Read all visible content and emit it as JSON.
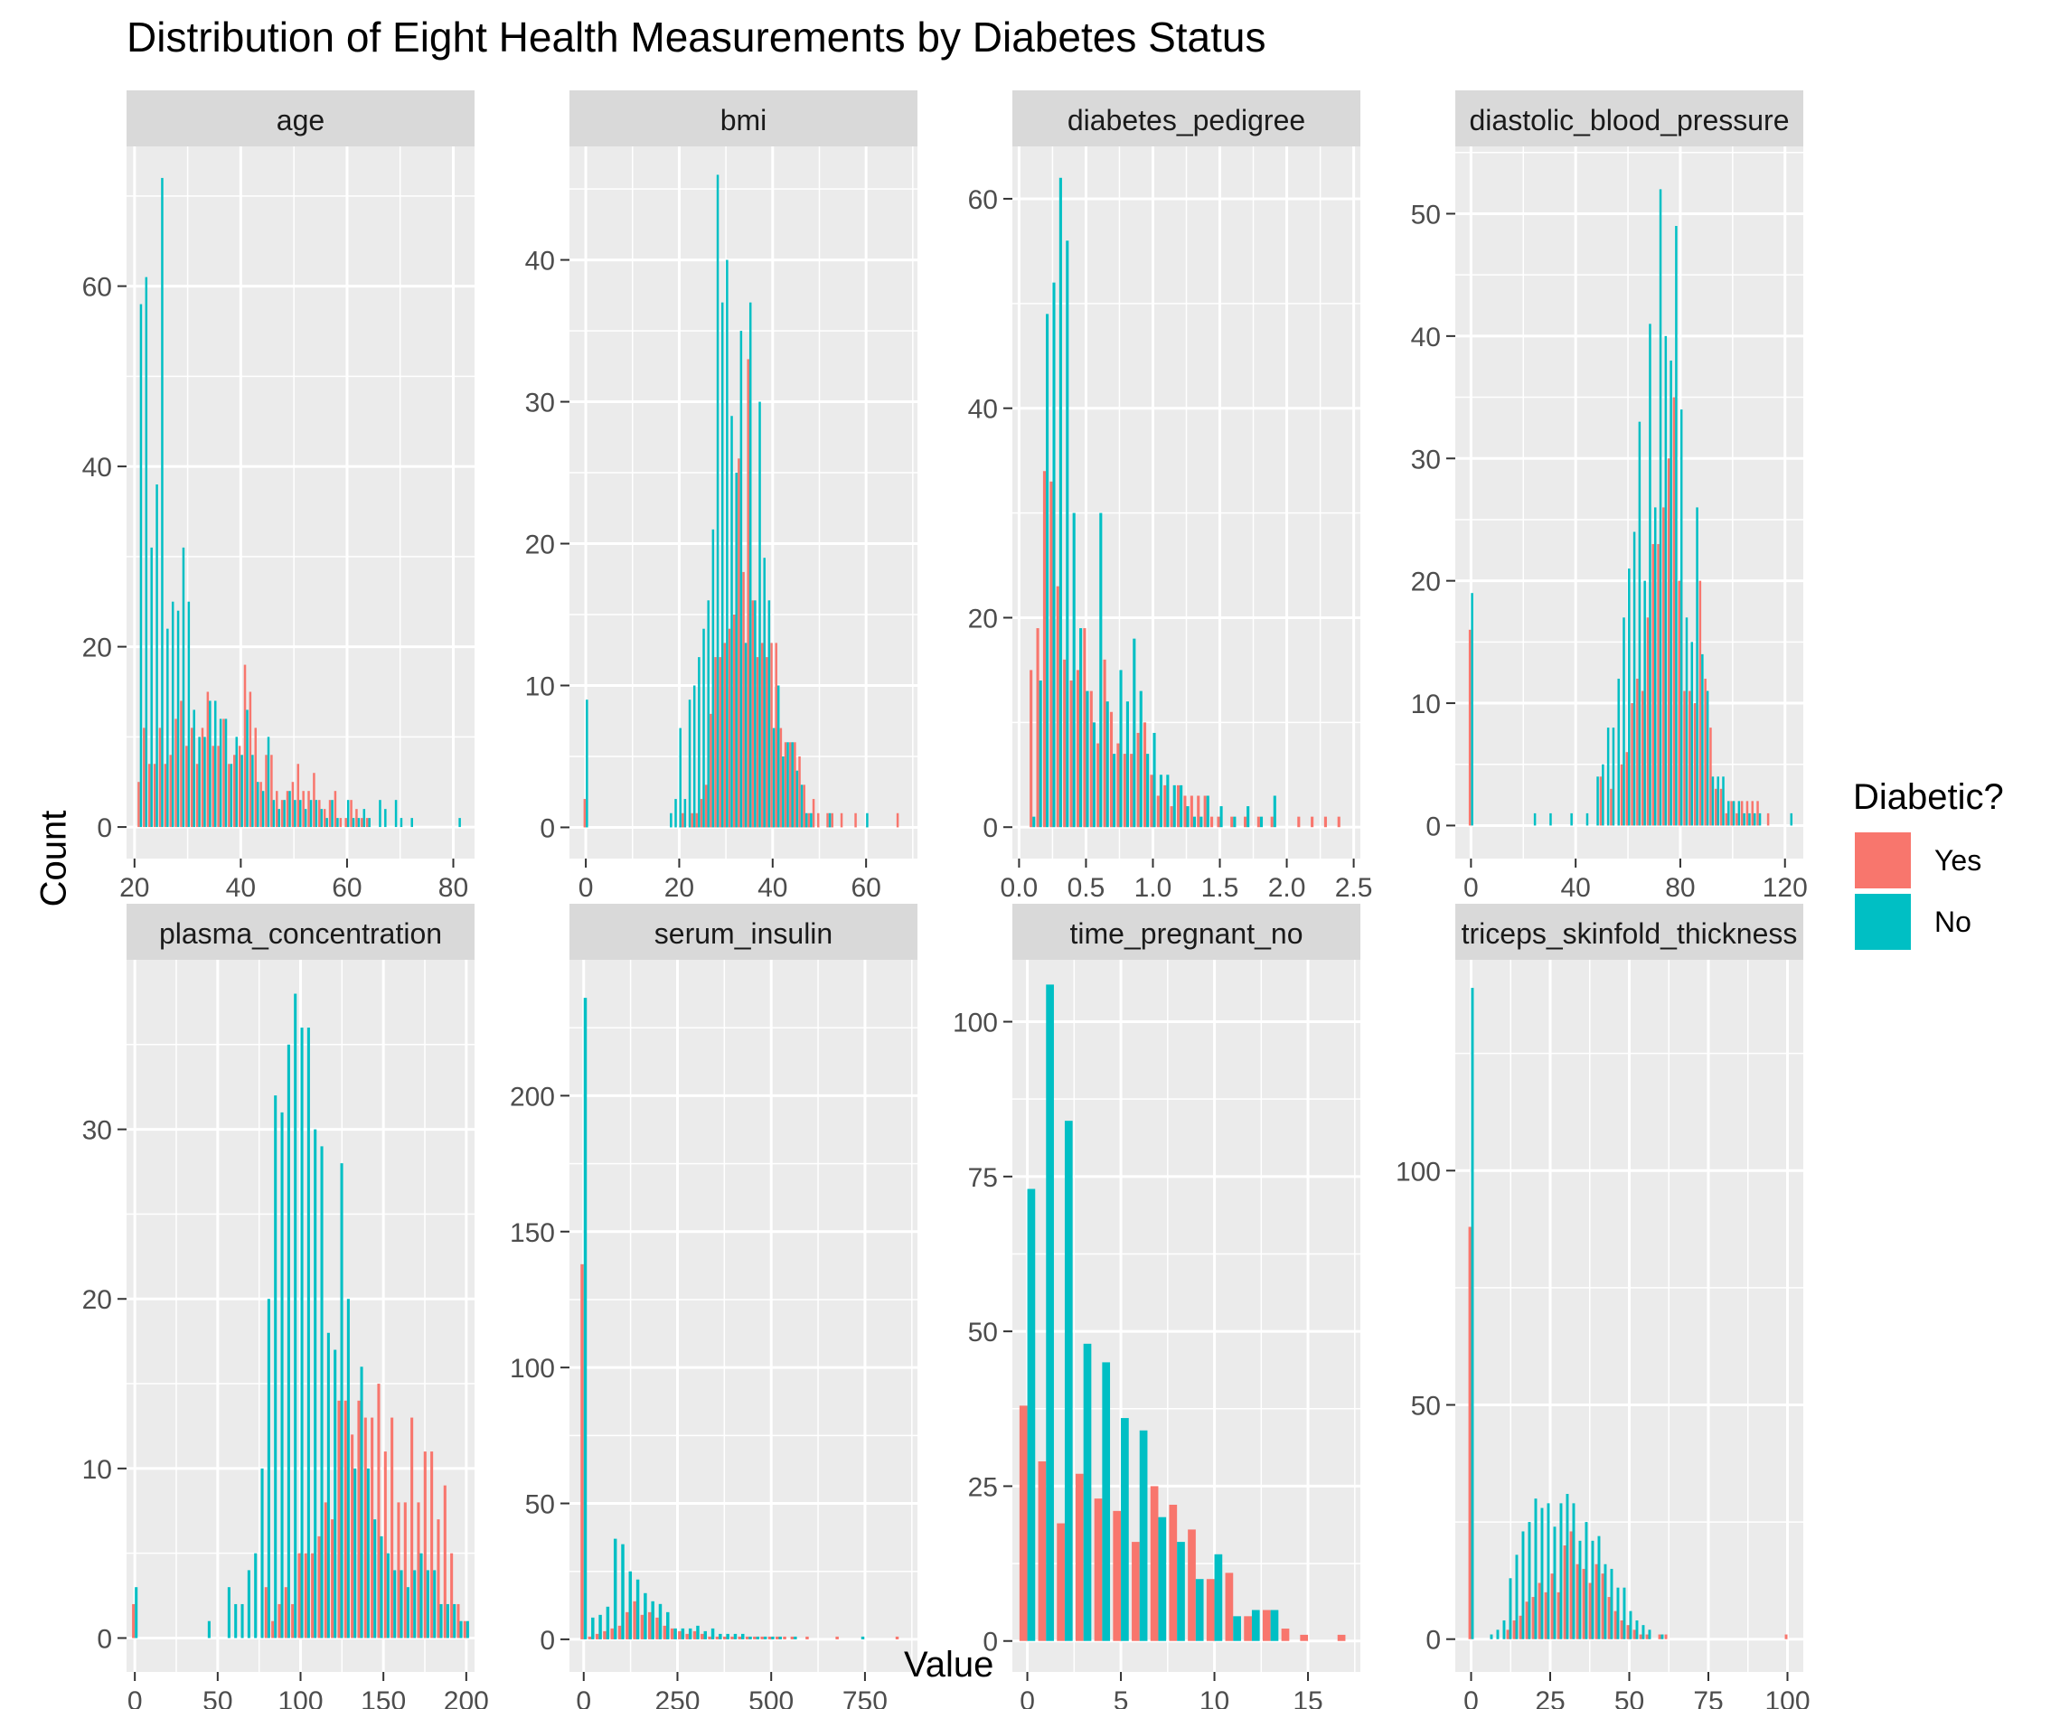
{
  "title": "Distribution of Eight Health Measurements by Diabetes Status",
  "xlabel": "Value",
  "ylabel": "Count",
  "legend": {
    "title": "Diabetic?",
    "items": [
      {
        "label": "Yes",
        "color": "#F8766D"
      },
      {
        "label": "No",
        "color": "#00BFC4"
      }
    ]
  },
  "chart_data": [
    {
      "type": "bar",
      "facet": "age",
      "xlim": [
        18.5,
        84
      ],
      "ylim": [
        -3.5,
        75.5
      ],
      "xticks": [
        20,
        40,
        60,
        80
      ],
      "xtick_labels": [
        "20",
        "40",
        "60",
        "80"
      ],
      "yticks": [
        0,
        20,
        40,
        60
      ],
      "ytick_labels": [
        "0",
        "20",
        "40",
        "60"
      ],
      "x": [
        21,
        22,
        23,
        24,
        25,
        26,
        27,
        28,
        29,
        30,
        31,
        32,
        33,
        34,
        35,
        36,
        37,
        38,
        39,
        40,
        41,
        42,
        43,
        44,
        45,
        46,
        47,
        48,
        49,
        50,
        51,
        52,
        53,
        54,
        55,
        56,
        57,
        58,
        59,
        60,
        61,
        62,
        63,
        64,
        65,
        66,
        67,
        68,
        69,
        70,
        72,
        81
      ],
      "series": [
        {
          "name": "Yes",
          "values": [
            5,
            11,
            7,
            7,
            11,
            7,
            8,
            12,
            14,
            9,
            11,
            7,
            11,
            15,
            9,
            9,
            12,
            7,
            8,
            9,
            18,
            15,
            11,
            5,
            8,
            8,
            4,
            3,
            4,
            5,
            7,
            4,
            4,
            6,
            3,
            2,
            3,
            4,
            1,
            1,
            3,
            2,
            1,
            1,
            0,
            0,
            0,
            0,
            0,
            0,
            0,
            0
          ]
        },
        {
          "name": "No",
          "values": [
            58,
            61,
            31,
            38,
            72,
            22,
            25,
            24,
            31,
            25,
            13,
            10,
            10,
            14,
            14,
            12,
            12,
            7,
            10,
            8,
            13,
            8,
            5,
            4,
            10,
            3,
            2,
            3,
            4,
            3,
            3,
            2,
            3,
            3,
            2,
            1,
            3,
            1,
            0,
            3,
            1,
            1,
            2,
            1,
            0,
            3,
            2,
            0,
            3,
            1,
            1,
            1
          ]
        }
      ]
    },
    {
      "type": "bar",
      "facet": "bmi",
      "xlim": [
        -3.5,
        71
      ],
      "ylim": [
        -2.2,
        48
      ],
      "xticks": [
        0,
        20,
        40,
        60
      ],
      "xtick_labels": [
        "0",
        "20",
        "40",
        "60"
      ],
      "yticks": [
        0,
        10,
        20,
        30,
        40
      ],
      "ytick_labels": [
        "0",
        "10",
        "20",
        "30",
        "40"
      ],
      "x": [
        0,
        18,
        19,
        20,
        21,
        22,
        23,
        24,
        25,
        26,
        27,
        28,
        29,
        30,
        31,
        32,
        33,
        34,
        35,
        36,
        37,
        38,
        39,
        40,
        41,
        42,
        43,
        44,
        45,
        46,
        47,
        48,
        49,
        50,
        52,
        53,
        55,
        58,
        60,
        67
      ],
      "series": [
        {
          "name": "Yes",
          "values": [
            2,
            0,
            0,
            0,
            1,
            0,
            1,
            1,
            2,
            3,
            8,
            12,
            12,
            13,
            14,
            15,
            26,
            18,
            33,
            16,
            12,
            13,
            12,
            13,
            13,
            7,
            6,
            6,
            6,
            5,
            3,
            1,
            2,
            1,
            1,
            1,
            1,
            1,
            0,
            1
          ]
        },
        {
          "name": "No",
          "values": [
            9,
            1,
            2,
            7,
            2,
            9,
            10,
            12,
            14,
            16,
            21,
            46,
            37,
            40,
            29,
            25,
            35,
            13,
            37,
            16,
            30,
            19,
            16,
            7,
            10,
            5,
            6,
            6,
            4,
            3,
            1,
            1,
            0,
            0,
            1,
            0,
            0,
            0,
            1,
            0
          ]
        }
      ]
    },
    {
      "type": "bar",
      "facet": "diabetes_pedigree",
      "xlim": [
        -0.05,
        2.55
      ],
      "ylim": [
        -3,
        65
      ],
      "xticks": [
        0,
        0.5,
        1,
        1.5,
        2,
        2.5
      ],
      "xtick_labels": [
        "0.0",
        "0.5",
        "1.0",
        "1.5",
        "2.0",
        "2.5"
      ],
      "yticks": [
        0,
        20,
        40,
        60
      ],
      "ytick_labels": [
        "0",
        "20",
        "40",
        "60"
      ],
      "x": [
        0.1,
        0.15,
        0.2,
        0.25,
        0.3,
        0.35,
        0.4,
        0.45,
        0.5,
        0.55,
        0.6,
        0.65,
        0.7,
        0.75,
        0.8,
        0.85,
        0.9,
        0.95,
        1.0,
        1.05,
        1.1,
        1.15,
        1.2,
        1.25,
        1.3,
        1.35,
        1.4,
        1.45,
        1.5,
        1.6,
        1.7,
        1.8,
        1.9,
        2.1,
        2.2,
        2.3,
        2.4
      ],
      "series": [
        {
          "name": "Yes",
          "values": [
            15,
            19,
            34,
            33,
            23,
            16,
            14,
            15,
            19,
            13,
            8,
            16,
            11,
            8,
            7,
            7,
            9,
            10,
            5,
            3,
            4,
            2,
            4,
            3,
            3,
            3,
            3,
            1,
            1,
            1,
            1,
            1,
            1,
            1,
            1,
            1,
            1
          ]
        },
        {
          "name": "No",
          "values": [
            1,
            14,
            49,
            52,
            62,
            56,
            30,
            19,
            13,
            10,
            30,
            12,
            7,
            15,
            12,
            18,
            13,
            7,
            9,
            5,
            5,
            4,
            4,
            2,
            1,
            1,
            3,
            0,
            2,
            1,
            2,
            1,
            3,
            0,
            0,
            0,
            0
          ]
        }
      ]
    },
    {
      "type": "bar",
      "facet": "diastolic_blood_pressure",
      "xlim": [
        -6,
        127
      ],
      "ylim": [
        -2.7,
        55.5
      ],
      "xticks": [
        0,
        40,
        80,
        120
      ],
      "xtick_labels": [
        "0",
        "40",
        "80",
        "120"
      ],
      "yticks": [
        0,
        10,
        20,
        30,
        40,
        50
      ],
      "ytick_labels": [
        "0",
        "10",
        "20",
        "30",
        "40",
        "50"
      ],
      "x": [
        0,
        24,
        30,
        38,
        44,
        48,
        50,
        52,
        54,
        56,
        58,
        60,
        62,
        64,
        66,
        68,
        70,
        72,
        74,
        76,
        78,
        80,
        82,
        84,
        86,
        88,
        90,
        92,
        94,
        96,
        98,
        100,
        102,
        104,
        106,
        108,
        110,
        114,
        122
      ],
      "series": [
        {
          "name": "Yes",
          "values": [
            16,
            0,
            0,
            0,
            0,
            0,
            4,
            0,
            3,
            0,
            5,
            6,
            10,
            12,
            11,
            17,
            23,
            23,
            26,
            30,
            35,
            20,
            11,
            11,
            10,
            20,
            12,
            8,
            3,
            3,
            1,
            2,
            1,
            2,
            2,
            2,
            2,
            1,
            0
          ]
        },
        {
          "name": "No",
          "values": [
            19,
            1,
            1,
            1,
            1,
            4,
            5,
            8,
            8,
            12,
            17,
            21,
            24,
            33,
            20,
            41,
            26,
            52,
            40,
            38,
            49,
            34,
            17,
            15,
            26,
            14,
            11,
            4,
            4,
            4,
            2,
            2,
            2,
            1,
            1,
            1,
            1,
            0,
            1
          ]
        }
      ]
    },
    {
      "type": "bar",
      "facet": "plasma_concentration",
      "xlim": [
        -5,
        205
      ],
      "ylim": [
        -2,
        40
      ],
      "xticks": [
        0,
        50,
        100,
        150,
        200
      ],
      "xtick_labels": [
        "0",
        "50",
        "100",
        "150",
        "200"
      ],
      "yticks": [
        0,
        10,
        20,
        30
      ],
      "ytick_labels": [
        "0",
        "10",
        "20",
        "30"
      ],
      "x": [
        0,
        44,
        56,
        60,
        64,
        68,
        72,
        76,
        80,
        84,
        88,
        92,
        96,
        100,
        104,
        108,
        112,
        116,
        120,
        124,
        128,
        132,
        136,
        140,
        144,
        148,
        152,
        156,
        160,
        164,
        168,
        172,
        176,
        180,
        184,
        188,
        192,
        196,
        200
      ],
      "series": [
        {
          "name": "Yes",
          "values": [
            2,
            0,
            0,
            0,
            0,
            0,
            0,
            0,
            3,
            1,
            2,
            3,
            2,
            5,
            5,
            5,
            6,
            8,
            7,
            14,
            14,
            12,
            14,
            13,
            13,
            15,
            11,
            13,
            8,
            8,
            13,
            8,
            11,
            11,
            7,
            9,
            5,
            2,
            1
          ]
        },
        {
          "name": "No",
          "values": [
            3,
            1,
            3,
            2,
            2,
            4,
            5,
            10,
            20,
            32,
            31,
            35,
            38,
            36,
            36,
            30,
            29,
            18,
            17,
            28,
            20,
            10,
            16,
            10,
            7,
            6,
            5,
            4,
            4,
            3,
            4,
            5,
            4,
            4,
            2,
            2,
            2,
            1,
            1
          ]
        }
      ]
    },
    {
      "type": "bar",
      "facet": "serum_insulin",
      "xlim": [
        -38,
        890
      ],
      "ylim": [
        -12,
        250
      ],
      "xticks": [
        0,
        250,
        500,
        750
      ],
      "xtick_labels": [
        "0",
        "250",
        "500",
        "750"
      ],
      "yticks": [
        0,
        50,
        100,
        150,
        200
      ],
      "ytick_labels": [
        "0",
        "50",
        "100",
        "150",
        "200"
      ],
      "x": [
        0,
        20,
        40,
        60,
        80,
        100,
        120,
        140,
        160,
        180,
        200,
        220,
        240,
        260,
        280,
        300,
        320,
        340,
        360,
        380,
        400,
        420,
        440,
        460,
        480,
        500,
        520,
        540,
        560,
        600,
        680,
        740,
        840
      ],
      "series": [
        {
          "name": "Yes",
          "values": [
            138,
            1,
            2,
            3,
            4,
            5,
            10,
            14,
            9,
            10,
            8,
            5,
            4,
            3,
            2,
            3,
            2,
            1,
            1,
            1,
            1,
            1,
            1,
            1,
            1,
            1,
            1,
            1,
            1,
            1,
            1,
            0,
            1
          ]
        },
        {
          "name": "No",
          "values": [
            236,
            8,
            9,
            12,
            37,
            35,
            25,
            22,
            17,
            14,
            13,
            10,
            4,
            4,
            4,
            5,
            3,
            4,
            2,
            2,
            2,
            2,
            1,
            1,
            1,
            1,
            1,
            0,
            1,
            0,
            0,
            1,
            0
          ]
        }
      ]
    },
    {
      "type": "bar",
      "facet": "time_pregnant_no",
      "xlim": [
        -0.8,
        17.8
      ],
      "ylim": [
        -5,
        110
      ],
      "xticks": [
        0,
        5,
        10,
        15
      ],
      "xtick_labels": [
        "0",
        "5",
        "10",
        "15"
      ],
      "yticks": [
        0,
        25,
        50,
        75,
        100
      ],
      "ytick_labels": [
        "0",
        "25",
        "50",
        "75",
        "100"
      ],
      "x": [
        0,
        1,
        2,
        3,
        4,
        5,
        6,
        7,
        8,
        9,
        10,
        11,
        12,
        13,
        14,
        15,
        17
      ],
      "series": [
        {
          "name": "Yes",
          "values": [
            38,
            29,
            19,
            27,
            23,
            21,
            16,
            25,
            22,
            18,
            10,
            11,
            4,
            5,
            2,
            1,
            1
          ]
        },
        {
          "name": "No",
          "values": [
            73,
            106,
            84,
            48,
            45,
            36,
            34,
            20,
            16,
            10,
            14,
            4,
            5,
            5,
            0,
            0,
            0
          ]
        }
      ]
    },
    {
      "type": "bar",
      "facet": "triceps_skinfold_thickness",
      "xlim": [
        -5,
        105
      ],
      "ylim": [
        -7,
        145
      ],
      "xticks": [
        0,
        25,
        50,
        75,
        100
      ],
      "xtick_labels": [
        "0",
        "25",
        "50",
        "75",
        "100"
      ],
      "yticks": [
        0,
        50,
        100
      ],
      "ytick_labels": [
        "0",
        "50",
        "100"
      ],
      "x": [
        0,
        6,
        8,
        10,
        12,
        14,
        16,
        18,
        20,
        22,
        24,
        26,
        28,
        30,
        32,
        34,
        36,
        38,
        40,
        42,
        44,
        46,
        48,
        50,
        52,
        54,
        56,
        60,
        62,
        100
      ],
      "series": [
        {
          "name": "Yes",
          "values": [
            88,
            0,
            0,
            0,
            2,
            4,
            5,
            8,
            9,
            12,
            10,
            14,
            10,
            20,
            23,
            16,
            15,
            12,
            16,
            14,
            9,
            6,
            4,
            3,
            2,
            1,
            1,
            1,
            1,
            1
          ]
        },
        {
          "name": "No",
          "values": [
            139,
            1,
            2,
            4,
            13,
            18,
            23,
            25,
            30,
            28,
            29,
            24,
            29,
            31,
            29,
            21,
            25,
            21,
            22,
            16,
            15,
            11,
            11,
            6,
            4,
            3,
            2,
            1,
            0,
            0
          ]
        }
      ]
    }
  ]
}
